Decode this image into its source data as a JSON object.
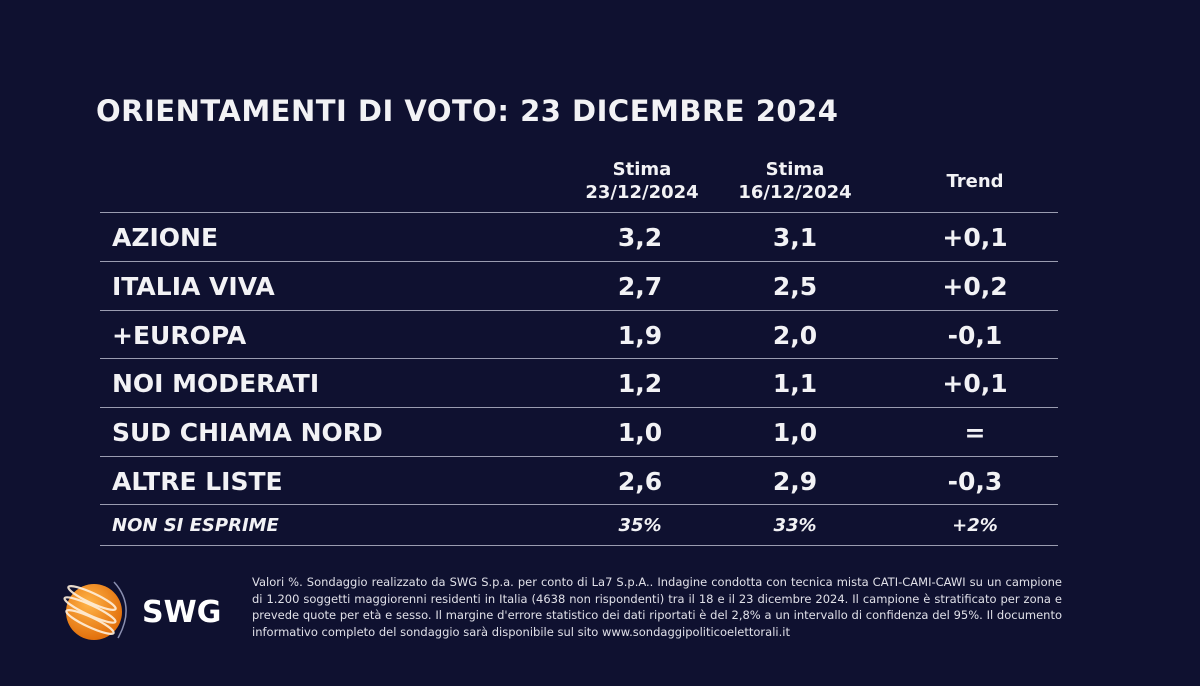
{
  "title": "ORIENTAMENTI DI VOTO: 23 DICEMBRE 2024",
  "columns": [
    {
      "line1": "Stima",
      "line2": "23/12/2024"
    },
    {
      "line1": "Stima",
      "line2": "16/12/2024"
    },
    {
      "line1": "Trend",
      "line2": ""
    }
  ],
  "rows": [
    {
      "party": "AZIONE",
      "current": "3,2",
      "previous": "3,1",
      "trend": "+0,1"
    },
    {
      "party": "ITALIA VIVA",
      "current": "2,7",
      "previous": "2,5",
      "trend": "+0,2"
    },
    {
      "party": "+EUROPA",
      "current": "1,9",
      "previous": "2,0",
      "trend": "-0,1"
    },
    {
      "party": "NOI MODERATI",
      "current": "1,2",
      "previous": "1,1",
      "trend": "+0,1"
    },
    {
      "party": "SUD CHIAMA NORD",
      "current": "1,0",
      "previous": "1,0",
      "trend": "="
    },
    {
      "party": "ALTRE LISTE",
      "current": "2,6",
      "previous": "2,9",
      "trend": "-0,3"
    },
    {
      "party": "NON SI ESPRIME",
      "current": "35%",
      "previous": "33%",
      "trend": "+2%"
    }
  ],
  "logo": {
    "text": "SWG",
    "colors": {
      "globe": "#f28a1a",
      "background": "#0f1130"
    }
  },
  "footnote": "Valori %. Sondaggio realizzato da SWG S.p.a. per conto di La7 S.p.A.. Indagine condotta con tecnica mista CATI-CAMI-CAWI su un campione di 1.200 soggetti maggiorenni residenti in Italia (4638 non rispondenti) tra il 18 e il 23 dicembre 2024. Il campione è stratificato per zona e prevede quote per età e sesso. Il margine d'errore statistico dei dati riportati è del 2,8% a un intervallo di confidenza del 95%. Il documento informativo completo del sondaggio sarà disponibile sul sito www.sondaggipoliticoelettorali.it"
}
